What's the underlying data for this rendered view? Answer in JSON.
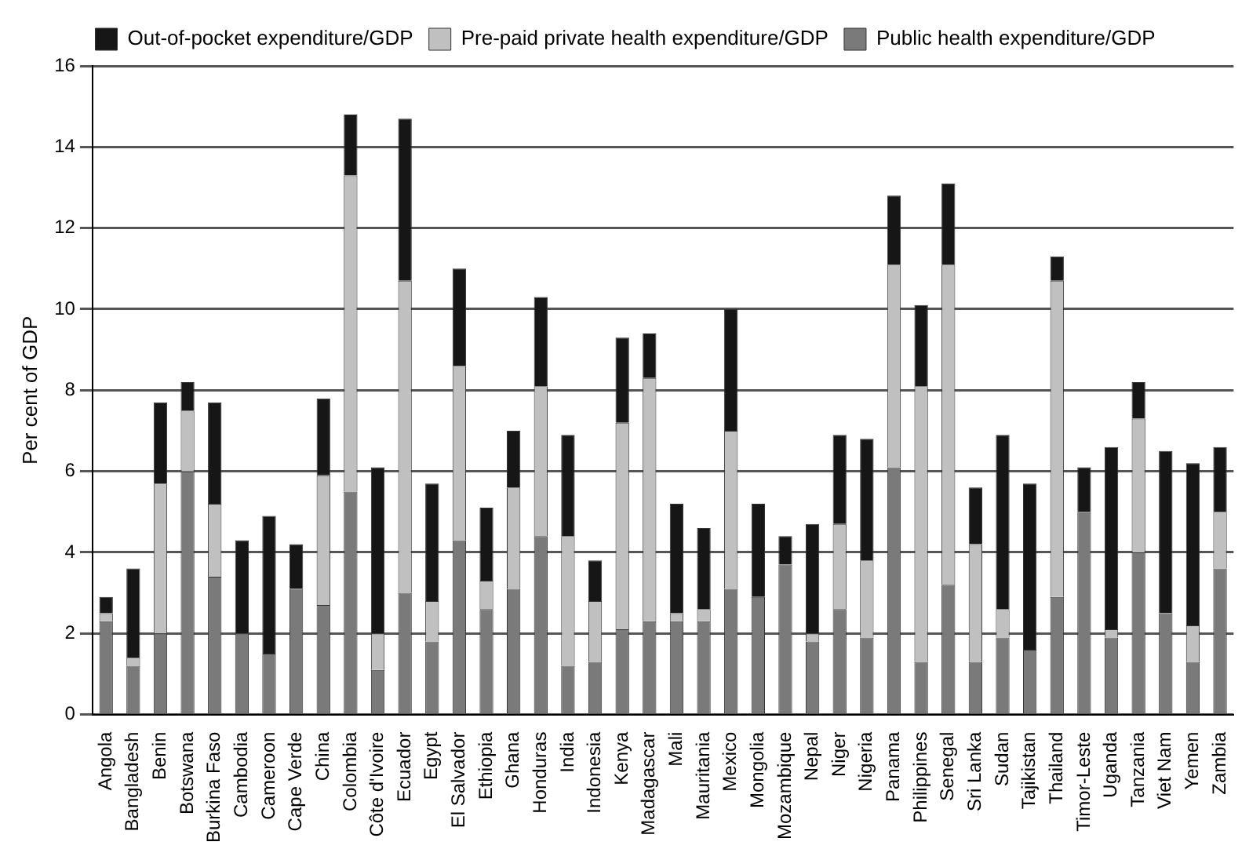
{
  "chart_data": {
    "type": "bar",
    "stacked": true,
    "ylabel": "Per cent of GDP",
    "categories": [
      "Angola",
      "Bangladesh",
      "Benin",
      "Botswana",
      "Burkina Faso",
      "Cambodia",
      "Cameroon",
      "Cape Verde",
      "China",
      "Colombia",
      "Côte d'Ivoire",
      "Ecuador",
      "Egypt",
      "El Salvador",
      "Ethiopia",
      "Ghana",
      "Honduras",
      "India",
      "Indonesia",
      "Kenya",
      "Madagascar",
      "Mali",
      "Mauritania",
      "Mexico",
      "Mongolia",
      "Mozambique",
      "Nepal",
      "Niger",
      "Nigeria",
      "Panama",
      "Philippines",
      "Senegal",
      "Sri Lanka",
      "Sudan",
      "Tajikistan",
      "Thailand",
      "Timor-Leste",
      "Uganda",
      "Tanzania",
      "Viet Nam",
      "Yemen",
      "Zambia"
    ],
    "series": [
      {
        "name": "Public health expenditure/GDP",
        "color": "#7a7a7a",
        "values": [
          2.3,
          1.2,
          2.0,
          6.0,
          3.4,
          2.0,
          1.5,
          3.1,
          2.7,
          5.5,
          1.1,
          3.0,
          1.8,
          4.3,
          2.6,
          3.1,
          4.4,
          1.2,
          1.3,
          2.1,
          2.3,
          2.3,
          2.3,
          3.1,
          2.9,
          3.7,
          1.8,
          2.6,
          1.9,
          6.1,
          1.3,
          3.2,
          1.3,
          1.9,
          1.6,
          2.9,
          5.0,
          1.9,
          4.0,
          2.5,
          1.3,
          3.6
        ]
      },
      {
        "name": "Pre-paid private health expenditure/GDP",
        "color": "#c0c0c0",
        "values": [
          0.2,
          0.2,
          3.7,
          1.5,
          1.8,
          0,
          0,
          0,
          3.2,
          7.8,
          0.9,
          7.7,
          1.0,
          4.3,
          0.7,
          2.5,
          3.7,
          3.2,
          1.5,
          5.1,
          6.0,
          0.2,
          0.3,
          3.9,
          0,
          0,
          0.2,
          2.1,
          1.9,
          5.0,
          6.8,
          7.9,
          2.9,
          0.7,
          0,
          7.8,
          0,
          0.2,
          3.3,
          0,
          0.9,
          1.4
        ]
      },
      {
        "name": "Out-of-pocket expenditure/GDP",
        "color": "#161616",
        "values": [
          0.4,
          2.2,
          2.0,
          0.7,
          2.5,
          2.3,
          3.4,
          1.1,
          1.9,
          1.5,
          4.1,
          4.0,
          2.9,
          2.4,
          1.8,
          1.4,
          2.2,
          2.5,
          1.0,
          2.1,
          1.1,
          2.7,
          2.0,
          3.0,
          2.3,
          0.7,
          2.7,
          2.2,
          3.0,
          1.7,
          2.0,
          2.0,
          1.4,
          4.3,
          4.1,
          0.6,
          1.1,
          4.5,
          0.9,
          4.0,
          4.0,
          1.6
        ]
      }
    ],
    "ylim": [
      0,
      16
    ],
    "yticks": [
      0,
      2,
      4,
      6,
      8,
      10,
      12,
      14,
      16
    ],
    "grid": "y",
    "legend": "top"
  }
}
